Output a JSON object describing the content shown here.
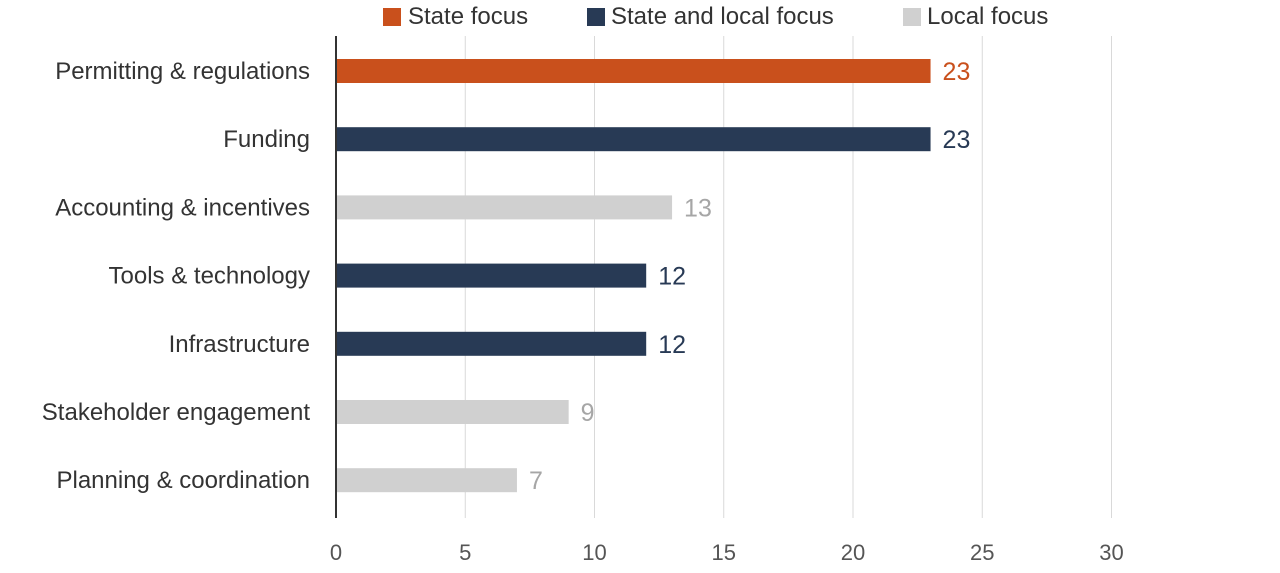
{
  "chart_data": {
    "type": "bar",
    "orientation": "horizontal",
    "title": "",
    "xlabel": "",
    "ylabel": "",
    "xlim": [
      0,
      30
    ],
    "xticks": [
      0,
      5,
      10,
      15,
      20,
      25,
      30
    ],
    "grid": "vertical",
    "legend_position": "top",
    "legend": [
      {
        "key": "state",
        "label": "State focus",
        "color": "#C9501C"
      },
      {
        "key": "state_local",
        "label": "State and local focus",
        "color": "#283A55"
      },
      {
        "key": "local",
        "label": "Local focus",
        "color": "#D0D0D0"
      }
    ],
    "categories": [
      "Permitting & regulations",
      "Funding",
      "Accounting & incentives",
      "Tools & technology",
      "Infrastructure",
      "Stakeholder engagement",
      "Planning & coordination"
    ],
    "values": [
      23,
      23,
      13,
      12,
      12,
      9,
      7
    ],
    "bar_focus": [
      "state",
      "state_local",
      "local",
      "state_local",
      "state_local",
      "local",
      "local"
    ],
    "data_label_colors": {
      "state": "#C9501C",
      "state_local": "#283A55",
      "local": "#A6A6A6"
    },
    "colors": {
      "axis_line": "#333333",
      "gridline": "#D9D9D9",
      "category_text": "#333333",
      "tick_text": "#555555",
      "legend_text": "#333333"
    }
  }
}
